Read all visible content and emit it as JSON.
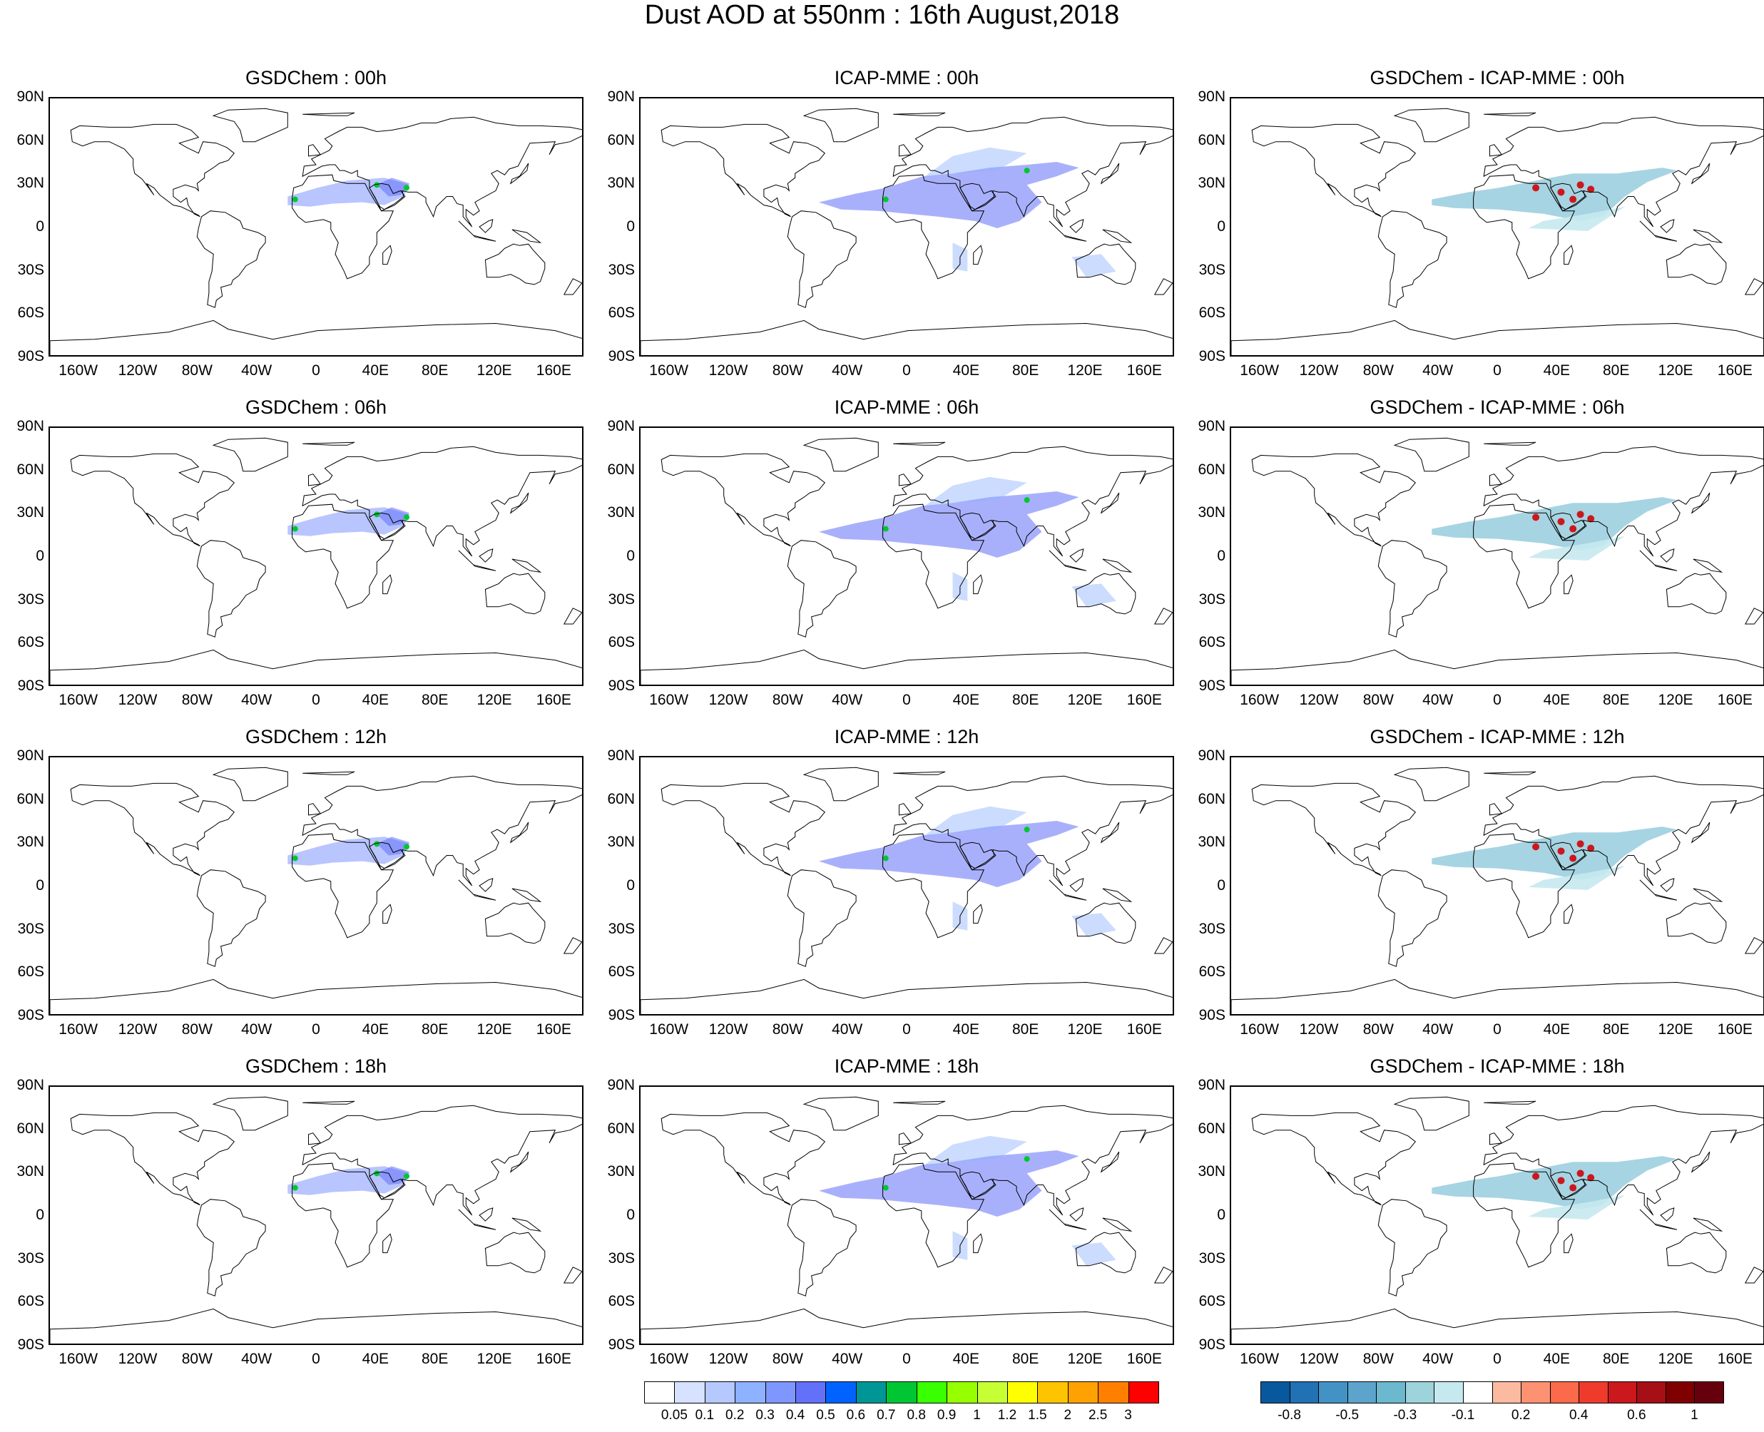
{
  "title": "Dust AOD at 550nm : 16th August,2018",
  "lat_labels": [
    "90N",
    "60N",
    "30N",
    "0",
    "30S",
    "60S",
    "90S"
  ],
  "lon_labels": [
    "160W",
    "120W",
    "80W",
    "40W",
    "0",
    "40E",
    "80E",
    "120E",
    "160E"
  ],
  "panels": [
    {
      "title": "GSDChem : 00h",
      "kind": "gsd"
    },
    {
      "title": "ICAP-MME : 00h",
      "kind": "icap"
    },
    {
      "title": "GSDChem - ICAP-MME : 00h",
      "kind": "diff"
    },
    {
      "title": "GSDChem : 06h",
      "kind": "gsd"
    },
    {
      "title": "ICAP-MME : 06h",
      "kind": "icap"
    },
    {
      "title": "GSDChem - ICAP-MME : 06h",
      "kind": "diff"
    },
    {
      "title": "GSDChem : 12h",
      "kind": "gsd"
    },
    {
      "title": "ICAP-MME : 12h",
      "kind": "icap"
    },
    {
      "title": "GSDChem - ICAP-MME : 12h",
      "kind": "diff"
    },
    {
      "title": "GSDChem : 18h",
      "kind": "gsd"
    },
    {
      "title": "ICAP-MME : 18h",
      "kind": "icap"
    },
    {
      "title": "GSDChem - ICAP-MME : 18h",
      "kind": "diff"
    }
  ],
  "colorbar_aod": {
    "labels": [
      "0.05",
      "0.1",
      "0.2",
      "0.3",
      "0.4",
      "0.5",
      "0.6",
      "0.7",
      "0.8",
      "0.9",
      "1",
      "1.2",
      "1.5",
      "2",
      "2.5",
      "3"
    ],
    "colors": [
      "#ffffff",
      "#d6e2ff",
      "#b5c9ff",
      "#8eb2ff",
      "#7f96ff",
      "#6370f8",
      "#0063ff",
      "#009696",
      "#00c633",
      "#39ff00",
      "#96ff00",
      "#c6ff33",
      "#ffff00",
      "#ffc400",
      "#ffa100",
      "#ff7f00",
      "#ff0000"
    ]
  },
  "colorbar_diff": {
    "labels": [
      "-0.8",
      "-0.5",
      "-0.3",
      "-0.1",
      "0.2",
      "0.4",
      "0.6",
      "1"
    ],
    "colors": [
      "#08589e",
      "#2171b5",
      "#4292c6",
      "#5ca4cc",
      "#6bb8cf",
      "#9dd3da",
      "#c6e9ef",
      "#ffffff",
      "#fcbba1",
      "#fc9272",
      "#fb6a4a",
      "#ef3b2c",
      "#cb181d",
      "#a50f15",
      "#7f0000",
      "#67000d"
    ]
  },
  "style": {
    "gsd_fill": "#7f96ff",
    "gsd_dense": "#6370f8",
    "hotspot": "#00c633",
    "icap_fill": "#8eb2ff",
    "icap_dense": "#6370f8",
    "diff_neg": "#6bb8cf",
    "diff_neg_light": "#c6e9ef",
    "diff_pos": "#cb181d"
  }
}
